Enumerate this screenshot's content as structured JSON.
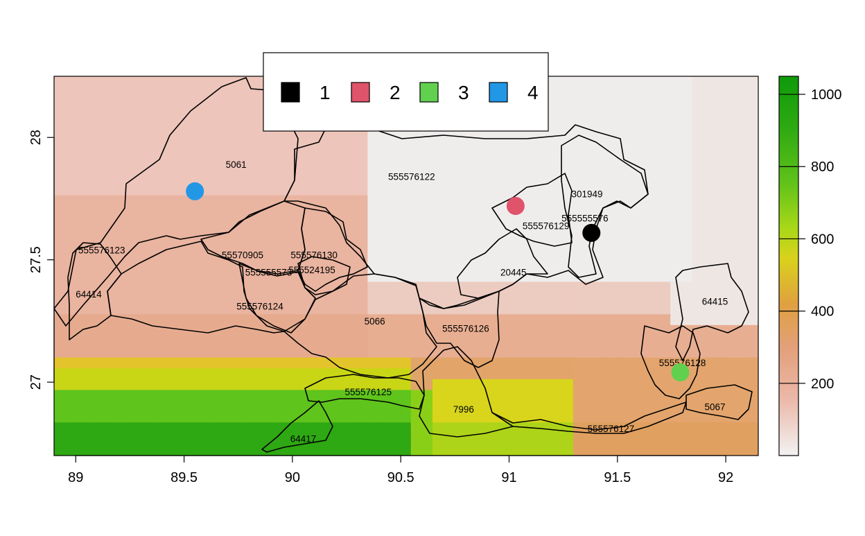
{
  "map": {
    "x_axis": {
      "ticks": [
        "89",
        "89.5",
        "90",
        "90.5",
        "91",
        "91.5",
        "92"
      ],
      "values": [
        89,
        89.5,
        90,
        90.5,
        91,
        91.5,
        92
      ],
      "range": [
        88.9,
        92.15
      ]
    },
    "y_axis": {
      "ticks": [
        "27",
        "27.5",
        "28"
      ],
      "values": [
        27,
        27.5,
        28
      ],
      "range": [
        26.7,
        28.25
      ]
    },
    "legend": {
      "placement": "top-center",
      "items": [
        {
          "label": "1",
          "color": "#000000"
        },
        {
          "label": "2",
          "color": "#DF536B"
        },
        {
          "label": "3",
          "color": "#61D04F"
        },
        {
          "label": "4",
          "color": "#2297E6"
        }
      ]
    },
    "colorbar": {
      "ticks": [
        "200",
        "400",
        "600",
        "800",
        "1000"
      ],
      "values": [
        200,
        400,
        600,
        800,
        1000
      ],
      "range": [
        0,
        1050
      ],
      "palette": "terrain"
    },
    "points": [
      {
        "label": "1",
        "color": "#000000",
        "lon": 91.38,
        "lat": 27.61
      },
      {
        "label": "2",
        "color": "#DF536B",
        "lon": 91.03,
        "lat": 27.72
      },
      {
        "label": "3",
        "color": "#61D04F",
        "lon": 91.79,
        "lat": 27.04
      },
      {
        "label": "4",
        "color": "#2297E6",
        "lon": 89.55,
        "lat": 27.78
      }
    ],
    "region_labels": [
      {
        "text": "5061",
        "lon": 89.74,
        "lat": 27.89
      },
      {
        "text": "555576122",
        "lon": 90.55,
        "lat": 27.84
      },
      {
        "text": "301949",
        "lon": 91.36,
        "lat": 27.77
      },
      {
        "text": "555555576",
        "lon": 91.35,
        "lat": 27.67
      },
      {
        "text": "555576129",
        "lon": 91.17,
        "lat": 27.64
      },
      {
        "text": "555576123",
        "lon": 89.12,
        "lat": 27.54
      },
      {
        "text": "55570905",
        "lon": 89.77,
        "lat": 27.52
      },
      {
        "text": "555576130",
        "lon": 90.1,
        "lat": 27.52
      },
      {
        "text": "555555573",
        "lon": 89.89,
        "lat": 27.45
      },
      {
        "text": "555524195",
        "lon": 90.09,
        "lat": 27.46
      },
      {
        "text": "20445",
        "lon": 91.02,
        "lat": 27.45
      },
      {
        "text": "64414",
        "lon": 89.06,
        "lat": 27.36
      },
      {
        "text": "64415",
        "lon": 91.95,
        "lat": 27.33
      },
      {
        "text": "555576124",
        "lon": 89.85,
        "lat": 27.31
      },
      {
        "text": "5066",
        "lon": 90.38,
        "lat": 27.25
      },
      {
        "text": "555576126",
        "lon": 90.8,
        "lat": 27.22
      },
      {
        "text": "555576128",
        "lon": 91.8,
        "lat": 27.08
      },
      {
        "text": "555576125",
        "lon": 90.35,
        "lat": 26.96
      },
      {
        "text": "7996",
        "lon": 90.79,
        "lat": 26.89
      },
      {
        "text": "5067",
        "lon": 91.95,
        "lat": 26.9
      },
      {
        "text": "555576127",
        "lon": 91.47,
        "lat": 26.81
      },
      {
        "text": "64417",
        "lon": 90.05,
        "lat": 26.77
      }
    ]
  }
}
